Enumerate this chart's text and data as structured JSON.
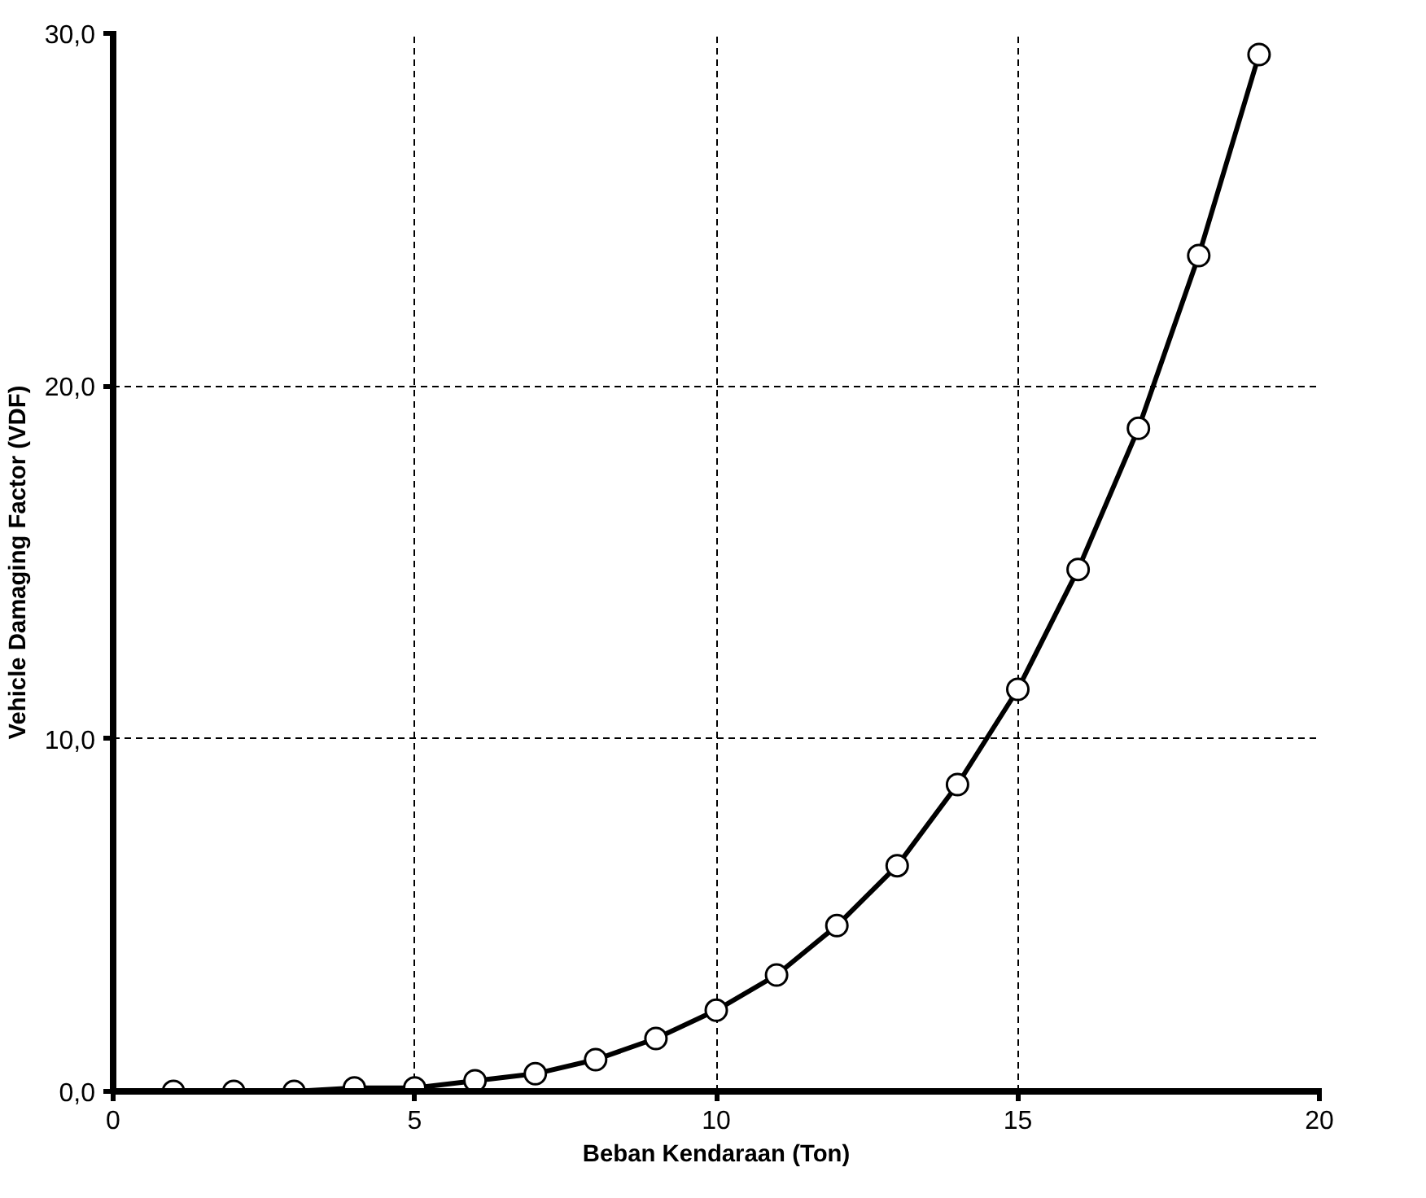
{
  "chart_data": {
    "type": "line",
    "xlabel": "Beban Kendaraan (Ton)",
    "ylabel": "Vehicle Damaging Factor (VDF)",
    "x": [
      1,
      2,
      3,
      4,
      5,
      6,
      7,
      8,
      9,
      10,
      11,
      12,
      13,
      14,
      15,
      16,
      17,
      18,
      19
    ],
    "series": [
      {
        "color": "#000000",
        "values": [
          0.0,
          0.0,
          0.0,
          0.1,
          0.1,
          0.3,
          0.5,
          0.9,
          1.5,
          2.3,
          3.3,
          4.7,
          6.4,
          8.7,
          11.4,
          14.8,
          18.8,
          23.7,
          29.4
        ]
      }
    ],
    "xlim": [
      0,
      20
    ],
    "ylim": [
      0,
      30
    ],
    "xticks": [
      0,
      5,
      10,
      15,
      20
    ],
    "yticks": [
      {
        "value": 0,
        "label": "0,0"
      },
      {
        "value": 10,
        "label": "10,0"
      },
      {
        "value": 20,
        "label": "20,0"
      },
      {
        "value": 30,
        "label": "30,0"
      }
    ],
    "grid": true,
    "marker": "circle",
    "line_style": "solid"
  }
}
